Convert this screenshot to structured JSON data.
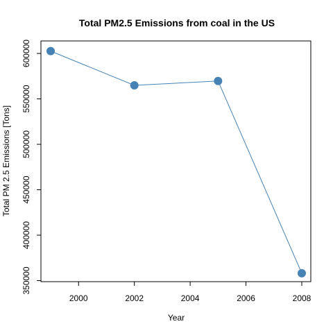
{
  "chart_data": {
    "type": "line",
    "title": "Total PM2.5 Emissions from coal in the US",
    "xlabel": "Year",
    "ylabel": "Total PM 2.5 Emissions [Tons]",
    "x": [
      1999,
      2002,
      2005,
      2008
    ],
    "series": [
      {
        "values": [
          602600,
          564900,
          569700,
          358100
        ]
      }
    ],
    "xlim": [
      1999,
      2008
    ],
    "ylim": [
      350000,
      605000
    ],
    "xticks": [
      "2000",
      "2002",
      "2004",
      "2006",
      "2008"
    ],
    "yticks": [
      "350000",
      "400000",
      "450000",
      "500000",
      "550000",
      "600000"
    ],
    "grid": false,
    "line_color": "#4682b4",
    "marker_color": "#4682b4"
  }
}
